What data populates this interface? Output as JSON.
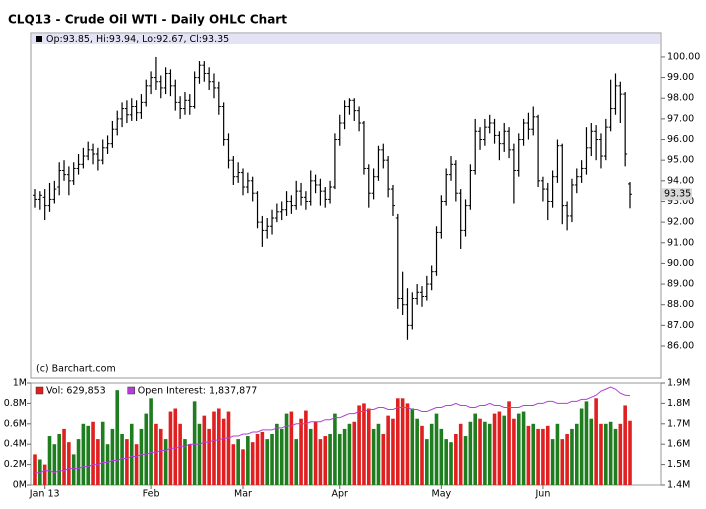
{
  "chart_data": [
    {
      "type": "ohlc",
      "title": "CLQ13 - Crude Oil WTI - Daily OHLC Chart",
      "header": "Op:93.85, Hi:93.94, Lo:92.67, Cl:93.35",
      "last_label": "93.35",
      "credit": "(c) Barchart.com",
      "color": "#000000",
      "ylim": [
        84.45,
        101.16
      ],
      "yticks": [
        {
          "value": 86,
          "label": "86.00"
        },
        {
          "value": 87,
          "label": "87.00"
        },
        {
          "value": 88,
          "label": "88.00"
        },
        {
          "value": 89,
          "label": "89.00"
        },
        {
          "value": 90,
          "label": "90.00"
        },
        {
          "value": 91,
          "label": "91.00"
        },
        {
          "value": 92,
          "label": "92.00"
        },
        {
          "value": 93,
          "label": "93.00"
        },
        {
          "value": 94,
          "label": "94.00"
        },
        {
          "value": 95,
          "label": "95.00"
        },
        {
          "value": 96,
          "label": "96.00"
        },
        {
          "value": 97,
          "label": "97.00"
        },
        {
          "value": 98,
          "label": "98.00"
        },
        {
          "value": 99,
          "label": "99.00"
        },
        {
          "value": 100,
          "label": "100.00"
        }
      ],
      "ohlc": [
        [
          93.3,
          93.6,
          92.7,
          93.1
        ],
        [
          93.1,
          93.5,
          92.6,
          93.3
        ],
        [
          93.2,
          93.6,
          92.1,
          92.8
        ],
        [
          92.8,
          93.9,
          92.5,
          93.1
        ],
        [
          93.1,
          94.0,
          92.9,
          93.6
        ],
        [
          93.7,
          94.9,
          93.3,
          94.5
        ],
        [
          94.5,
          95.0,
          94.0,
          94.3
        ],
        [
          94.3,
          94.7,
          93.3,
          94.0
        ],
        [
          94.0,
          94.9,
          93.8,
          94.6
        ],
        [
          94.6,
          95.3,
          94.3,
          94.8
        ],
        [
          94.8,
          95.6,
          94.6,
          95.2
        ],
        [
          95.2,
          95.9,
          95.0,
          95.5
        ],
        [
          95.5,
          95.8,
          94.8,
          95.3
        ],
        [
          95.3,
          95.6,
          94.5,
          95.0
        ],
        [
          95.0,
          96.0,
          94.8,
          95.6
        ],
        [
          95.6,
          96.2,
          95.3,
          95.8
        ],
        [
          95.8,
          96.9,
          95.6,
          96.5
        ],
        [
          96.5,
          97.4,
          96.2,
          97.0
        ],
        [
          97.0,
          97.8,
          96.6,
          97.5
        ],
        [
          97.5,
          97.9,
          96.8,
          97.2
        ],
        [
          97.2,
          98.0,
          96.9,
          97.6
        ],
        [
          97.6,
          97.9,
          96.9,
          97.3
        ],
        [
          97.3,
          98.2,
          97.0,
          97.8
        ],
        [
          97.8,
          98.9,
          97.6,
          98.6
        ],
        [
          98.6,
          99.3,
          98.2,
          99.0
        ],
        [
          99.0,
          100.0,
          98.4,
          98.8
        ],
        [
          98.8,
          99.1,
          98.0,
          98.5
        ],
        [
          98.5,
          99.5,
          98.2,
          99.2
        ],
        [
          99.2,
          99.4,
          98.1,
          98.6
        ],
        [
          98.6,
          98.9,
          97.4,
          97.8
        ],
        [
          97.8,
          98.1,
          97.0,
          97.5
        ],
        [
          97.5,
          98.3,
          97.2,
          97.9
        ],
        [
          97.9,
          98.2,
          97.2,
          97.6
        ],
        [
          97.6,
          99.3,
          97.5,
          99.0
        ],
        [
          99.0,
          99.8,
          98.7,
          99.6
        ],
        [
          99.6,
          99.8,
          98.8,
          99.2
        ],
        [
          99.2,
          99.5,
          98.4,
          98.8
        ],
        [
          98.8,
          99.2,
          98.0,
          98.5
        ],
        [
          98.5,
          98.8,
          97.2,
          97.6
        ],
        [
          97.6,
          97.8,
          95.7,
          96.0
        ],
        [
          96.0,
          96.3,
          94.6,
          95.0
        ],
        [
          95.0,
          95.2,
          93.8,
          94.2
        ],
        [
          94.2,
          94.9,
          93.9,
          94.4
        ],
        [
          94.4,
          94.6,
          93.3,
          93.7
        ],
        [
          93.7,
          94.4,
          93.4,
          94.0
        ],
        [
          94.0,
          94.2,
          93.0,
          93.4
        ],
        [
          93.4,
          93.5,
          91.7,
          92.0
        ],
        [
          92.0,
          92.3,
          90.8,
          91.6
        ],
        [
          91.6,
          92.2,
          91.2,
          91.8
        ],
        [
          91.8,
          92.6,
          91.4,
          92.2
        ],
        [
          92.2,
          92.9,
          92.0,
          92.5
        ],
        [
          92.5,
          93.0,
          92.1,
          92.6
        ],
        [
          92.6,
          93.5,
          92.3,
          93.0
        ],
        [
          93.0,
          93.3,
          92.4,
          92.8
        ],
        [
          92.8,
          94.0,
          92.6,
          93.5
        ],
        [
          93.5,
          93.9,
          92.8,
          93.2
        ],
        [
          93.2,
          93.5,
          92.6,
          93.0
        ],
        [
          93.0,
          94.5,
          92.8,
          94.0
        ],
        [
          94.0,
          94.3,
          93.4,
          93.8
        ],
        [
          93.8,
          94.1,
          92.8,
          93.5
        ],
        [
          93.5,
          93.7,
          92.7,
          93.1
        ],
        [
          93.1,
          94.0,
          92.9,
          93.7
        ],
        [
          93.7,
          96.3,
          93.6,
          96.0
        ],
        [
          96.0,
          97.2,
          95.7,
          96.8
        ],
        [
          96.8,
          97.9,
          96.5,
          97.6
        ],
        [
          97.6,
          98.0,
          97.2,
          97.9
        ],
        [
          97.9,
          98.0,
          96.9,
          97.4
        ],
        [
          97.4,
          97.6,
          96.4,
          96.8
        ],
        [
          96.8,
          96.9,
          94.3,
          94.6
        ],
        [
          94.6,
          94.8,
          92.7,
          93.4
        ],
        [
          93.4,
          94.6,
          93.1,
          94.2
        ],
        [
          94.2,
          95.7,
          94.0,
          95.5
        ],
        [
          95.5,
          95.8,
          94.6,
          95.0
        ],
        [
          95.0,
          95.2,
          93.2,
          93.6
        ],
        [
          93.6,
          93.8,
          92.3,
          92.8
        ],
        [
          92.2,
          92.4,
          87.8,
          88.3
        ],
        [
          88.3,
          89.6,
          87.5,
          88.0
        ],
        [
          88.0,
          88.8,
          86.3,
          87.0
        ],
        [
          87.0,
          88.6,
          86.8,
          88.3
        ],
        [
          88.3,
          89.0,
          88.0,
          88.6
        ],
        [
          88.6,
          88.9,
          87.9,
          88.4
        ],
        [
          88.4,
          89.4,
          88.2,
          89.0
        ],
        [
          89.0,
          89.9,
          88.7,
          89.6
        ],
        [
          89.6,
          91.8,
          89.4,
          91.5
        ],
        [
          91.5,
          93.3,
          91.2,
          93.0
        ],
        [
          93.0,
          94.6,
          92.8,
          94.3
        ],
        [
          94.3,
          95.2,
          94.0,
          94.8
        ],
        [
          94.8,
          95.0,
          93.0,
          93.4
        ],
        [
          93.4,
          93.6,
          90.7,
          91.6
        ],
        [
          91.6,
          93.1,
          91.3,
          92.8
        ],
        [
          92.8,
          94.8,
          92.6,
          94.5
        ],
        [
          94.5,
          97.0,
          94.3,
          96.4
        ],
        [
          96.4,
          96.6,
          95.5,
          96.0
        ],
        [
          96.0,
          97.0,
          95.7,
          96.6
        ],
        [
          96.6,
          97.2,
          96.3,
          96.8
        ],
        [
          96.8,
          97.0,
          95.8,
          96.2
        ],
        [
          96.2,
          96.4,
          95.0,
          95.8
        ],
        [
          95.8,
          96.8,
          95.4,
          96.4
        ],
        [
          96.4,
          96.6,
          95.1,
          95.5
        ],
        [
          95.5,
          95.8,
          92.9,
          94.5
        ],
        [
          94.5,
          96.3,
          94.2,
          96.0
        ],
        [
          96.0,
          97.0,
          95.7,
          96.8
        ],
        [
          96.8,
          97.3,
          96.0,
          96.5
        ],
        [
          96.5,
          97.6,
          96.2,
          97.1
        ],
        [
          97.1,
          97.2,
          93.7,
          94.0
        ],
        [
          94.0,
          94.2,
          93.0,
          93.6
        ],
        [
          93.6,
          93.9,
          92.1,
          93.0
        ],
        [
          93.0,
          94.5,
          92.7,
          94.2
        ],
        [
          94.2,
          96.0,
          93.9,
          95.7
        ],
        [
          95.7,
          95.8,
          91.9,
          92.8
        ],
        [
          92.8,
          93.0,
          91.6,
          92.3
        ],
        [
          92.3,
          94.1,
          92.0,
          93.8
        ],
        [
          93.8,
          94.6,
          93.4,
          94.2
        ],
        [
          94.2,
          95.0,
          93.9,
          94.6
        ],
        [
          94.6,
          96.6,
          94.3,
          95.6
        ],
        [
          95.6,
          96.8,
          95.2,
          96.4
        ],
        [
          96.4,
          96.7,
          95.0,
          96.0
        ],
        [
          96.0,
          96.3,
          94.6,
          95.2
        ],
        [
          95.2,
          97.0,
          95.0,
          96.6
        ],
        [
          96.6,
          98.9,
          96.4,
          97.5
        ],
        [
          97.5,
          99.2,
          97.2,
          98.6
        ],
        [
          98.6,
          98.8,
          96.8,
          98.2
        ],
        [
          98.2,
          98.3,
          94.7,
          95.3
        ],
        [
          93.85,
          93.94,
          92.67,
          93.35
        ]
      ]
    },
    {
      "type": "volume",
      "up_color": "#1e7d1e",
      "categories": [
        null,
        null,
        "Jan 13",
        null,
        null,
        null,
        null,
        null,
        null,
        null,
        null,
        null,
        null,
        null,
        null,
        null,
        null,
        null,
        null,
        null,
        null,
        null,
        null,
        null,
        "Feb",
        null,
        null,
        null,
        null,
        null,
        null,
        null,
        null,
        null,
        null,
        null,
        null,
        null,
        null,
        null,
        null,
        null,
        null,
        "Mar",
        null,
        null,
        null,
        null,
        null,
        null,
        null,
        null,
        null,
        null,
        null,
        null,
        null,
        null,
        null,
        null,
        null,
        null,
        null,
        "Apr",
        null,
        null,
        null,
        null,
        null,
        null,
        null,
        null,
        null,
        null,
        null,
        null,
        null,
        null,
        null,
        null,
        null,
        null,
        null,
        null,
        "May",
        null,
        null,
        null,
        null,
        null,
        null,
        null,
        null,
        null,
        null,
        null,
        null,
        null,
        null,
        null,
        null,
        null,
        null,
        null,
        null,
        "Jun",
        null,
        null,
        null,
        null,
        null,
        null,
        null,
        null,
        null,
        null,
        null,
        null,
        null,
        null,
        null,
        null,
        null,
        null
      ],
      "series": [
        {
          "name": "Vol: 629,853",
          "color": "#e02020",
          "values": [
            0.3,
            0.25,
            0.2,
            0.48,
            0.4,
            0.5,
            0.55,
            0.42,
            0.3,
            0.45,
            0.6,
            0.58,
            0.62,
            0.45,
            0.62,
            0.4,
            0.55,
            0.93,
            0.5,
            0.45,
            0.6,
            0.4,
            0.55,
            0.7,
            0.85,
            0.6,
            0.55,
            0.45,
            0.72,
            0.75,
            0.6,
            0.45,
            0.4,
            0.82,
            0.6,
            0.68,
            0.55,
            0.72,
            0.75,
            0.65,
            0.72,
            0.4,
            0.45,
            0.35,
            0.48,
            0.42,
            0.5,
            0.52,
            0.45,
            0.5,
            0.6,
            0.55,
            0.7,
            0.72,
            0.45,
            0.65,
            0.73,
            0.55,
            0.62,
            0.45,
            0.48,
            0.5,
            0.7,
            0.5,
            0.55,
            0.6,
            0.62,
            0.78,
            0.8,
            0.75,
            0.55,
            0.6,
            0.5,
            0.68,
            0.65,
            0.85,
            0.85,
            0.8,
            0.75,
            0.65,
            0.58,
            0.45,
            0.6,
            0.7,
            0.55,
            0.45,
            0.42,
            0.5,
            0.6,
            0.48,
            0.62,
            0.7,
            0.65,
            0.62,
            0.6,
            0.7,
            0.72,
            0.68,
            0.82,
            0.65,
            0.7,
            0.72,
            0.58,
            0.6,
            0.55,
            0.55,
            0.58,
            0.45,
            0.6,
            0.45,
            0.5,
            0.55,
            0.6,
            0.75,
            0.82,
            0.65,
            0.85,
            0.6,
            0.6,
            0.62,
            0.55,
            0.6,
            0.78,
            0.629853
          ]
        },
        {
          "name": "Open Interest: 1,837,877",
          "color": "#b040d8",
          "axis": "y2",
          "values": [
            1.46,
            1.46,
            1.47,
            1.47,
            1.46,
            1.47,
            1.47,
            1.48,
            1.48,
            1.48,
            1.49,
            1.49,
            1.5,
            1.5,
            1.51,
            1.51,
            1.52,
            1.52,
            1.53,
            1.53,
            1.54,
            1.54,
            1.55,
            1.55,
            1.56,
            1.56,
            1.57,
            1.57,
            1.58,
            1.58,
            1.59,
            1.59,
            1.6,
            1.6,
            1.6,
            1.61,
            1.61,
            1.62,
            1.62,
            1.63,
            1.63,
            1.64,
            1.64,
            1.65,
            1.65,
            1.66,
            1.66,
            1.67,
            1.67,
            1.67,
            1.68,
            1.68,
            1.69,
            1.69,
            1.7,
            1.7,
            1.7,
            1.71,
            1.71,
            1.71,
            1.72,
            1.72,
            1.73,
            1.73,
            1.74,
            1.75,
            1.75,
            1.76,
            1.76,
            1.77,
            1.77,
            1.78,
            1.78,
            1.77,
            1.77,
            1.78,
            1.78,
            1.78,
            1.77,
            1.77,
            1.76,
            1.76,
            1.77,
            1.78,
            1.78,
            1.79,
            1.79,
            1.8,
            1.79,
            1.79,
            1.78,
            1.78,
            1.79,
            1.79,
            1.8,
            1.79,
            1.79,
            1.78,
            1.78,
            1.78,
            1.78,
            1.79,
            1.79,
            1.79,
            1.8,
            1.8,
            1.81,
            1.81,
            1.8,
            1.8,
            1.8,
            1.81,
            1.81,
            1.82,
            1.82,
            1.83,
            1.84,
            1.86,
            1.87,
            1.88,
            1.87,
            1.85,
            1.84,
            1.837877
          ]
        }
      ],
      "ylim": [
        0,
        1
      ],
      "yticks": [
        {
          "value": 0,
          "label": "0M"
        },
        {
          "value": 0.2,
          "label": "0.2M"
        },
        {
          "value": 0.4,
          "label": "0.4M"
        },
        {
          "value": 0.6,
          "label": "0.6M"
        },
        {
          "value": 0.8,
          "label": "0.8M"
        },
        {
          "value": 1,
          "label": "1M"
        }
      ],
      "y2lim": [
        1.4,
        1.9
      ],
      "y2ticks": [
        {
          "value": 1.4,
          "label": "1.4M"
        },
        {
          "value": 1.5,
          "label": "1.5M"
        },
        {
          "value": 1.6,
          "label": "1.6M"
        },
        {
          "value": 1.7,
          "label": "1.7M"
        },
        {
          "value": 1.8,
          "label": "1.8M"
        },
        {
          "value": 1.9,
          "label": "1.9M"
        }
      ]
    }
  ]
}
